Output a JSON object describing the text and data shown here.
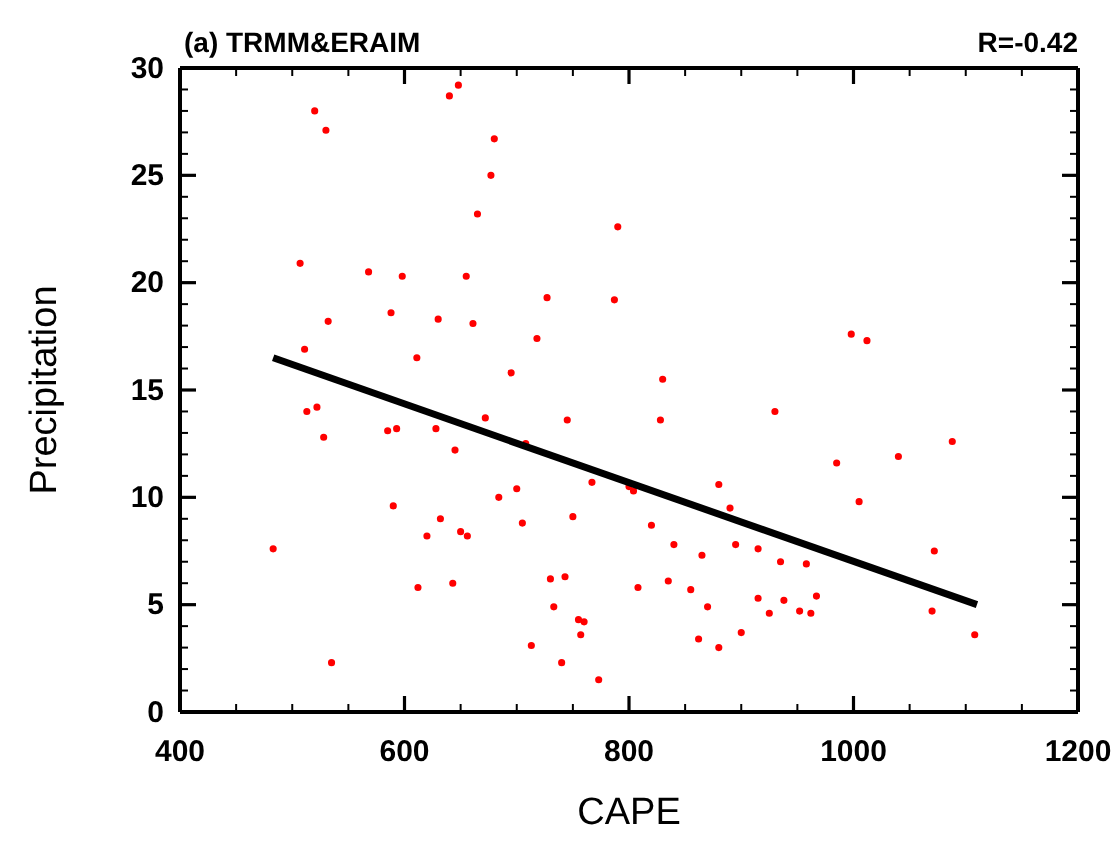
{
  "chart_data": {
    "type": "scatter",
    "title": "(a) TRMM&ERAIM",
    "annotations": [
      "R=-0.42"
    ],
    "xlabel": "CAPE",
    "ylabel": "Precipitation",
    "xlim": [
      400,
      1200
    ],
    "ylim": [
      0,
      30
    ],
    "xticks": [
      400,
      {
        "value": 450,
        "label": null
      },
      {
        "value": 500,
        "label": null
      },
      {
        "value": 550,
        "label": null
      },
      600,
      {
        "value": 650,
        "label": null
      },
      {
        "value": 700,
        "label": null
      },
      {
        "value": 750,
        "label": null
      },
      800,
      {
        "value": 850,
        "label": null
      },
      {
        "value": 900,
        "label": null
      },
      {
        "value": 950,
        "label": null
      },
      1000,
      {
        "value": 1050,
        "label": null
      },
      {
        "value": 1100,
        "label": null
      },
      {
        "value": 1150,
        "label": null
      },
      1200
    ],
    "yticks": [
      0,
      {
        "value": 1,
        "label": null
      },
      {
        "value": 2,
        "label": null
      },
      {
        "value": 3,
        "label": null
      },
      {
        "value": 4,
        "label": null
      },
      5,
      {
        "value": 6,
        "label": null
      },
      {
        "value": 7,
        "label": null
      },
      {
        "value": 8,
        "label": null
      },
      {
        "value": 9,
        "label": null
      },
      10,
      {
        "value": 11,
        "label": null
      },
      {
        "value": 12,
        "label": null
      },
      {
        "value": 13,
        "label": null
      },
      {
        "value": 14,
        "label": null
      },
      15,
      {
        "value": 16,
        "label": null
      },
      {
        "value": 17,
        "label": null
      },
      {
        "value": 18,
        "label": null
      },
      {
        "value": 19,
        "label": null
      },
      20,
      {
        "value": 21,
        "label": null
      },
      {
        "value": 22,
        "label": null
      },
      {
        "value": 23,
        "label": null
      },
      {
        "value": 24,
        "label": null
      },
      25,
      {
        "value": 26,
        "label": null
      },
      {
        "value": 27,
        "label": null
      },
      {
        "value": 28,
        "label": null
      },
      {
        "value": 29,
        "label": null
      },
      30
    ],
    "grid": false,
    "series": [
      {
        "color": "#ff0000",
        "marker": "circle",
        "x": [
          483,
          507,
          511,
          513,
          520,
          522,
          528,
          530,
          532,
          535,
          568,
          585,
          588,
          590,
          593,
          598,
          611,
          612,
          620,
          628,
          630,
          632,
          640,
          643,
          645,
          648,
          650,
          655,
          656,
          661,
          665,
          672,
          677,
          680,
          684,
          695,
          700,
          705,
          708,
          713,
          718,
          727,
          730,
          733,
          740,
          743,
          745,
          750,
          755,
          757,
          760,
          767,
          773,
          787,
          790,
          800,
          804,
          808,
          820,
          828,
          830,
          835,
          840,
          855,
          862,
          865,
          870,
          880,
          880,
          890,
          895,
          900,
          915,
          915,
          925,
          930,
          935,
          938,
          952,
          958,
          962,
          967,
          985,
          998,
          1005,
          1012,
          1040,
          1070,
          1072,
          1088,
          1108
        ],
        "values": [
          7.6,
          20.9,
          16.9,
          14,
          28,
          14.2,
          12.8,
          27.1,
          18.2,
          2.3,
          20.5,
          13.1,
          18.6,
          9.6,
          13.2,
          20.3,
          16.5,
          5.8,
          8.2,
          13.2,
          18.3,
          9,
          28.7,
          6,
          12.2,
          29.2,
          8.4,
          20.3,
          8.2,
          18.1,
          23.2,
          13.7,
          25,
          26.7,
          10,
          15.8,
          10.4,
          8.8,
          12.5,
          3.1,
          17.4,
          19.3,
          6.2,
          4.9,
          2.3,
          6.3,
          13.6,
          9.1,
          4.3,
          3.6,
          4.2,
          10.7,
          1.5,
          19.2,
          22.6,
          10.5,
          10.3,
          5.8,
          8.7,
          13.6,
          15.5,
          6.1,
          7.8,
          5.7,
          3.4,
          7.3,
          4.9,
          3,
          10.6,
          9.5,
          7.8,
          3.7,
          7.6,
          5.3,
          4.6,
          14,
          7,
          5.2,
          4.7,
          6.9,
          4.6,
          5.4,
          11.6,
          17.6,
          9.8,
          17.3,
          11.9,
          4.7,
          7.5,
          12.6,
          3.6
        ]
      },
      {
        "type": "line",
        "color": "#000000",
        "marker": "none",
        "line_style": "solid",
        "x": [
          483,
          1110
        ],
        "values": [
          16.5,
          5.0
        ]
      }
    ]
  }
}
